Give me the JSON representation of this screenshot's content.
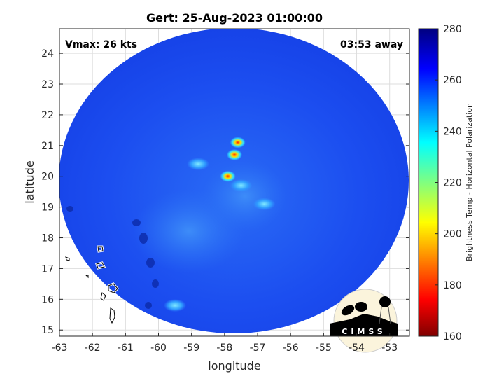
{
  "chart_data": {
    "type": "heatmap",
    "title": "Gert: 25-Aug-2023 01:00:00",
    "xlabel": "longitude",
    "ylabel": "latitude",
    "xlim": [
      -63,
      -52.4
    ],
    "ylim": [
      14.8,
      24.8
    ],
    "xticks": [
      "-63",
      "-62",
      "-61",
      "-60",
      "-59",
      "-58",
      "-57",
      "-56",
      "-55",
      "-54",
      "-53"
    ],
    "yticks": [
      "15",
      "16",
      "17",
      "18",
      "19",
      "20",
      "21",
      "22",
      "23",
      "24"
    ],
    "grid": true,
    "colorbar": {
      "label": "Brightness Temp - Horizontal Polarization",
      "range": [
        160,
        280
      ],
      "ticks": [
        "160",
        "180",
        "200",
        "220",
        "240",
        "260",
        "280"
      ],
      "colormap": "jet"
    },
    "annotations": {
      "vmax": "Vmax: 26 kts",
      "time_away": "03:53 away"
    },
    "swath": {
      "center_lon": -57.9,
      "center_lat": 19.8,
      "background_value": 265
    },
    "cold_spots": [
      {
        "lon": -57.6,
        "lat": 21.1,
        "value": 195
      },
      {
        "lon": -57.7,
        "lat": 20.7,
        "value": 200
      },
      {
        "lon": -57.9,
        "lat": 20.0,
        "value": 195
      },
      {
        "lon": -57.5,
        "lat": 19.7,
        "value": 225
      },
      {
        "lon": -56.8,
        "lat": 19.1,
        "value": 235
      },
      {
        "lon": -58.8,
        "lat": 20.4,
        "value": 240
      },
      {
        "lon": -59.5,
        "lat": 15.8,
        "value": 240
      }
    ]
  },
  "logo": {
    "text": "CIMSS"
  },
  "colors": {
    "swath": "#1e46f0",
    "frame": "#262626"
  }
}
